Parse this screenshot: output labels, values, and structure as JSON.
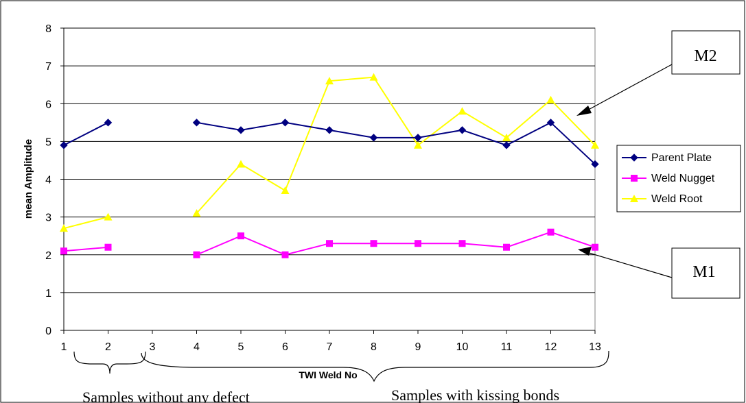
{
  "chart_data": {
    "type": "line",
    "title": "",
    "xlabel": "TWI Weld No",
    "ylabel": "mean Amplitude",
    "categories": [
      "1",
      "2",
      "3",
      "4",
      "5",
      "6",
      "7",
      "8",
      "9",
      "10",
      "11",
      "12",
      "13"
    ],
    "ylim": [
      0,
      8
    ],
    "yticks": [
      "0",
      "1",
      "2",
      "3",
      "4",
      "5",
      "6",
      "7",
      "8"
    ],
    "grid": true,
    "legend_position": "right",
    "series": [
      {
        "name": "Parent Plate",
        "color": "#000080",
        "marker": "diamond",
        "values": [
          4.9,
          5.5,
          null,
          5.5,
          5.3,
          5.5,
          5.3,
          5.1,
          5.1,
          5.3,
          4.9,
          5.5,
          4.4
        ]
      },
      {
        "name": "Weld Nugget",
        "color": "#ff00ff",
        "marker": "square",
        "values": [
          2.1,
          2.2,
          null,
          2.0,
          2.5,
          2.0,
          2.3,
          2.3,
          2.3,
          2.3,
          2.2,
          2.6,
          2.2
        ]
      },
      {
        "name": "Weld Root",
        "color": "#ffff00",
        "marker": "triangle",
        "values": [
          2.7,
          3.0,
          null,
          3.1,
          4.4,
          3.7,
          6.6,
          6.7,
          4.9,
          5.8,
          5.1,
          6.1,
          4.9
        ]
      }
    ],
    "annotations": {
      "m2": "M2",
      "m1": "M1",
      "group_without_defect": "Samples without any defect",
      "group_kissing_bonds": "Samples with kissing bonds"
    }
  }
}
